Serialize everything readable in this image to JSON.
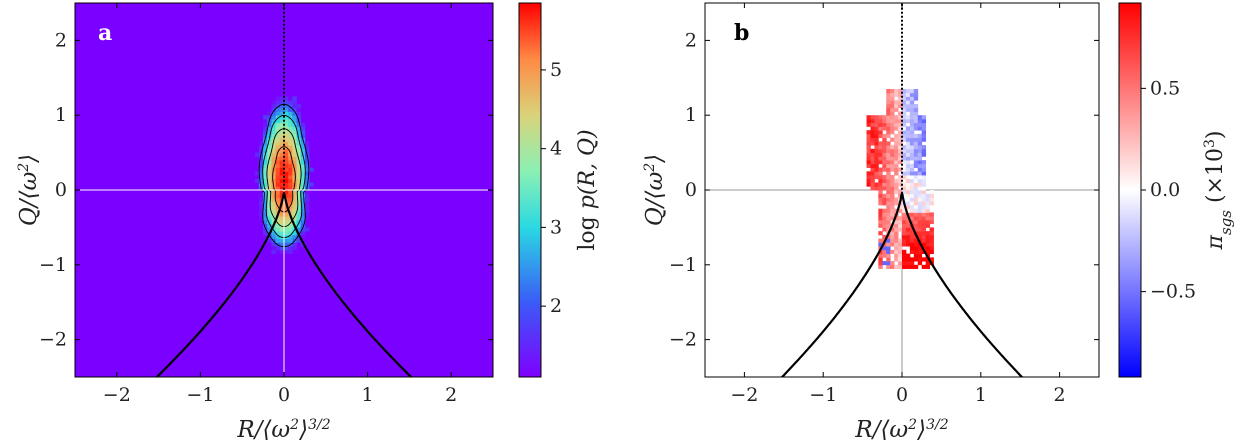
{
  "colors": {
    "background_a": "#7a00ff",
    "curve": "#000000",
    "zero_lines_a": "#ffffff",
    "zero_lines_b": "#9a9a9a",
    "diverging_neg": "#0000ff",
    "diverging_mid": "#ffffff",
    "diverging_pos": "#ff0000"
  },
  "chart_data": [
    {
      "panel": "a",
      "type": "heatmap",
      "title": "",
      "xlabel": "R/⟨ω²⟩^{3/2}",
      "ylabel": "Q/⟨ω²⟩",
      "xlim": [
        -2.5,
        2.5
      ],
      "ylim": [
        -2.5,
        2.5
      ],
      "xticks": [
        -2,
        -1,
        0,
        1,
        2
      ],
      "yticks": [
        -2,
        -1,
        0,
        1,
        2
      ],
      "xtick_labels": [
        "−2",
        "−1",
        "0",
        "1",
        "2"
      ],
      "ytick_labels": [
        "−2",
        "−1",
        "0",
        "1",
        "2"
      ],
      "panel_label": "a",
      "grid": false,
      "colorbar": {
        "label": "log p(R, Q)",
        "colormap": "rainbow",
        "range": [
          1.1,
          5.85
        ],
        "ticks": [
          2,
          3,
          4,
          5
        ],
        "tick_labels": [
          "2",
          "3",
          "4",
          "5"
        ]
      },
      "distribution": {
        "peak_R": 0.0,
        "peak_Q": 0.1,
        "peak_value": 5.8,
        "extent_R": [
          -0.7,
          0.7
        ],
        "extent_Q": [
          -1.5,
          1.6
        ]
      },
      "contour_levels": [
        2,
        3,
        4,
        5
      ],
      "curves": [
        "vieillefosse_tail",
        "R=0 dashed line for Q>0"
      ]
    },
    {
      "panel": "b",
      "type": "heatmap",
      "title": "",
      "xlabel": "R/⟨ω²⟩^{3/2}",
      "ylabel": "Q/⟨ω²⟩",
      "xlim": [
        -2.5,
        2.5
      ],
      "ylim": [
        -2.5,
        2.5
      ],
      "xticks": [
        -2,
        -1,
        0,
        1,
        2
      ],
      "yticks": [
        -2,
        -1,
        0,
        1,
        2
      ],
      "xtick_labels": [
        "−2",
        "−1",
        "0",
        "1",
        "2"
      ],
      "ytick_labels": [
        "−2",
        "−1",
        "0",
        "1",
        "2"
      ],
      "panel_label": "b",
      "grid": false,
      "colorbar": {
        "label": "π_sgs (×10³)",
        "colormap": "bwr",
        "range": [
          -0.92,
          0.92
        ],
        "ticks": [
          -0.5,
          0.0,
          0.5
        ],
        "tick_labels": [
          "−0.5",
          "0.0",
          "0.5"
        ]
      },
      "distribution": {
        "extent_R": [
          -0.55,
          0.45
        ],
        "extent_Q": [
          -1.05,
          1.35
        ],
        "upper_left_sign": "positive",
        "upper_right_sign": "negative",
        "lower_right_sign": "positive"
      },
      "curves": [
        "vieillefosse_tail",
        "R=0 dashed line for Q>0"
      ]
    }
  ]
}
